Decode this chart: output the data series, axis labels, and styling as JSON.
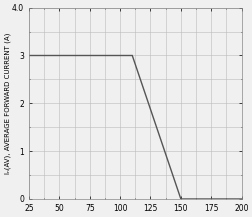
{
  "x_data": [
    25,
    110,
    110,
    150,
    200
  ],
  "y_data": [
    3.0,
    3.0,
    3.0,
    0.0,
    0.0
  ],
  "line_color": "#555555",
  "line_width": 1.0,
  "xlim": [
    25,
    200
  ],
  "ylim": [
    0,
    4.0
  ],
  "xticks": [
    25,
    50,
    75,
    100,
    125,
    150,
    175,
    200
  ],
  "yticks": [
    0,
    1.0,
    2.0,
    3.0,
    4.0
  ],
  "ylabel_top": "Iₙ(AV), AVERAGE FORWARD CURRENT (A)",
  "grid_color": "#bbbbbb",
  "grid_linewidth": 0.4,
  "background_color": "#f0f0f0",
  "tick_fontsize": 5.5,
  "ylabel_fontsize": 5.0,
  "fig_width": 2.53,
  "fig_height": 2.17,
  "dpi": 100
}
